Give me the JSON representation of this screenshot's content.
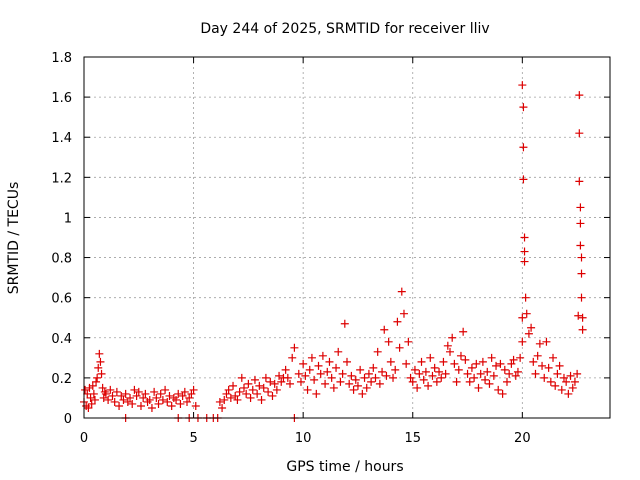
{
  "chart_data": {
    "type": "scatter",
    "title": "Day 244 of 2025, SRMTID for receiver lliv",
    "xlabel": "GPS time / hours",
    "ylabel": "SRMTID / TECUs",
    "xlim": [
      0,
      24
    ],
    "ylim": [
      0,
      1.8
    ],
    "x_ticks": [
      0,
      5,
      10,
      15,
      20
    ],
    "x_tick_labels": [
      "0",
      "5",
      "10",
      "15",
      "20"
    ],
    "y_ticks": [
      0,
      0.2,
      0.4,
      0.6,
      0.8,
      1,
      1.2,
      1.4,
      1.6,
      1.8
    ],
    "y_tick_labels": [
      "0",
      "0.2",
      "0.4",
      "0.6",
      "0.8",
      "1",
      "1.2",
      "1.4",
      "1.6",
      "1.8"
    ],
    "grid": true,
    "marker": "+",
    "series": [
      {
        "name": "SRMTID",
        "color": "#dd0000",
        "x": [
          0.0,
          0.05,
          0.1,
          0.15,
          0.2,
          0.25,
          0.3,
          0.35,
          0.4,
          0.45,
          0.5,
          0.55,
          0.6,
          0.65,
          0.7,
          0.75,
          0.8,
          0.85,
          0.9,
          0.95,
          1.0,
          1.1,
          1.2,
          1.3,
          1.4,
          1.5,
          1.6,
          1.7,
          1.8,
          1.9,
          2.0,
          2.1,
          2.2,
          2.3,
          2.4,
          2.5,
          2.6,
          2.7,
          2.8,
          2.9,
          3.0,
          3.1,
          3.2,
          3.3,
          3.4,
          3.5,
          3.6,
          3.7,
          3.8,
          3.9,
          4.0,
          4.1,
          4.2,
          4.3,
          4.4,
          4.5,
          4.6,
          4.7,
          4.8,
          4.9,
          5.0,
          5.1,
          6.2,
          6.3,
          6.4,
          6.5,
          6.6,
          6.7,
          6.8,
          6.9,
          7.0,
          7.1,
          7.2,
          7.3,
          7.4,
          7.5,
          7.6,
          7.7,
          7.8,
          7.9,
          8.0,
          8.1,
          8.2,
          8.3,
          8.4,
          8.5,
          8.6,
          8.7,
          8.8,
          8.9,
          9.0,
          9.1,
          9.2,
          9.3,
          9.4,
          9.5,
          9.6,
          9.8,
          9.9,
          10.0,
          10.1,
          10.2,
          10.3,
          10.4,
          10.5,
          10.6,
          10.7,
          10.8,
          10.9,
          11.0,
          11.1,
          11.2,
          11.3,
          11.4,
          11.5,
          11.6,
          11.7,
          11.8,
          11.9,
          12.0,
          12.1,
          12.2,
          12.3,
          12.4,
          12.5,
          12.6,
          12.7,
          12.8,
          12.9,
          13.0,
          13.1,
          13.2,
          13.3,
          13.4,
          13.5,
          13.6,
          13.7,
          13.8,
          13.9,
          14.0,
          14.1,
          14.2,
          14.3,
          14.4,
          14.5,
          14.6,
          14.7,
          14.8,
          14.9,
          15.0,
          15.1,
          15.2,
          15.3,
          15.4,
          15.5,
          15.6,
          15.7,
          15.8,
          15.9,
          16.0,
          16.1,
          16.2,
          16.3,
          16.4,
          16.5,
          16.6,
          16.7,
          16.8,
          16.9,
          17.0,
          17.1,
          17.2,
          17.3,
          17.4,
          17.5,
          17.6,
          17.7,
          17.8,
          17.9,
          18.0,
          18.1,
          18.2,
          18.3,
          18.4,
          18.5,
          18.6,
          18.7,
          18.8,
          18.9,
          19.0,
          19.1,
          19.2,
          19.3,
          19.4,
          19.5,
          19.6,
          19.7,
          19.8,
          19.9,
          20.0,
          20.0,
          20.0,
          20.05,
          20.05,
          20.05,
          20.1,
          20.1,
          20.1,
          20.15,
          20.2,
          20.3,
          20.4,
          20.5,
          20.6,
          20.7,
          20.8,
          20.9,
          21.0,
          21.1,
          21.2,
          21.3,
          21.4,
          21.5,
          21.6,
          21.7,
          21.8,
          21.9,
          22.0,
          22.1,
          22.2,
          22.3,
          22.4,
          22.5,
          22.55,
          22.6,
          22.6,
          22.6,
          22.65,
          22.65,
          22.65,
          22.7,
          22.7,
          22.7,
          22.75,
          22.75,
          1.9,
          4.3,
          4.8,
          5.2,
          5.6,
          5.9,
          6.1,
          9.6
        ],
        "y": [
          0.08,
          0.14,
          0.06,
          0.12,
          0.05,
          0.15,
          0.1,
          0.07,
          0.16,
          0.12,
          0.09,
          0.18,
          0.2,
          0.25,
          0.32,
          0.28,
          0.22,
          0.15,
          0.1,
          0.13,
          0.12,
          0.09,
          0.14,
          0.11,
          0.08,
          0.13,
          0.06,
          0.11,
          0.09,
          0.12,
          0.08,
          0.1,
          0.07,
          0.14,
          0.11,
          0.13,
          0.06,
          0.1,
          0.12,
          0.08,
          0.09,
          0.05,
          0.13,
          0.1,
          0.07,
          0.12,
          0.09,
          0.14,
          0.08,
          0.11,
          0.06,
          0.1,
          0.09,
          0.12,
          0.07,
          0.11,
          0.13,
          0.08,
          0.1,
          0.12,
          0.14,
          0.06,
          0.08,
          0.05,
          0.09,
          0.12,
          0.14,
          0.1,
          0.16,
          0.11,
          0.09,
          0.13,
          0.2,
          0.15,
          0.12,
          0.17,
          0.1,
          0.14,
          0.19,
          0.12,
          0.16,
          0.09,
          0.15,
          0.2,
          0.13,
          0.18,
          0.11,
          0.17,
          0.14,
          0.21,
          0.18,
          0.2,
          0.24,
          0.2,
          0.17,
          0.3,
          0.35,
          0.22,
          0.18,
          0.27,
          0.21,
          0.14,
          0.24,
          0.3,
          0.19,
          0.12,
          0.26,
          0.22,
          0.31,
          0.17,
          0.23,
          0.28,
          0.2,
          0.15,
          0.25,
          0.33,
          0.18,
          0.22,
          0.47,
          0.28,
          0.17,
          0.21,
          0.14,
          0.19,
          0.16,
          0.24,
          0.12,
          0.2,
          0.15,
          0.22,
          0.18,
          0.25,
          0.2,
          0.33,
          0.17,
          0.23,
          0.44,
          0.21,
          0.38,
          0.28,
          0.2,
          0.24,
          0.48,
          0.35,
          0.63,
          0.52,
          0.27,
          0.38,
          0.2,
          0.18,
          0.24,
          0.15,
          0.22,
          0.28,
          0.19,
          0.23,
          0.16,
          0.3,
          0.21,
          0.25,
          0.18,
          0.23,
          0.2,
          0.28,
          0.22,
          0.36,
          0.33,
          0.4,
          0.27,
          0.18,
          0.24,
          0.31,
          0.43,
          0.29,
          0.22,
          0.18,
          0.25,
          0.2,
          0.27,
          0.15,
          0.22,
          0.28,
          0.19,
          0.23,
          0.17,
          0.3,
          0.21,
          0.26,
          0.14,
          0.27,
          0.12,
          0.24,
          0.18,
          0.22,
          0.27,
          0.29,
          0.21,
          0.23,
          0.3,
          0.38,
          0.5,
          1.66,
          1.55,
          1.35,
          1.19,
          0.9,
          0.83,
          0.78,
          0.6,
          0.52,
          0.42,
          0.45,
          0.28,
          0.22,
          0.31,
          0.37,
          0.26,
          0.2,
          0.38,
          0.25,
          0.18,
          0.3,
          0.16,
          0.22,
          0.26,
          0.14,
          0.2,
          0.18,
          0.12,
          0.21,
          0.15,
          0.18,
          0.22,
          0.51,
          1.61,
          1.42,
          1.18,
          1.05,
          0.97,
          0.86,
          0.8,
          0.72,
          0.6,
          0.5,
          0.44,
          0.0,
          0.0,
          0.0,
          0.0,
          0.0,
          0.0,
          0.0,
          0.0
        ]
      }
    ]
  }
}
